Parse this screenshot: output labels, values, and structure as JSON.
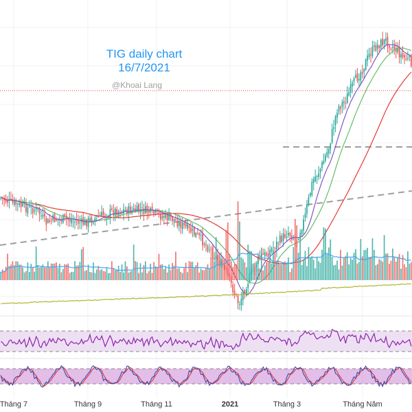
{
  "title": "TIG daily chart",
  "date": "16/7/2021",
  "watermark": "@Khoai Lang",
  "colors": {
    "up": "#26a69a",
    "down": "#ef5350",
    "ma_fast": "#7e57c2",
    "ma_mid": "#66bb6a",
    "ma_slow": "#e53935",
    "vol_ma": "#42a5f5",
    "obv": "#afb42b",
    "rsi": "#8e24aa",
    "rsi_band": "#ede0f3",
    "stoch_k": "#3949ab",
    "stoch_d": "#e53935",
    "stoch_band": "#ce93d8",
    "title": "#2196f3",
    "watermark": "#9e9e9e",
    "dash": "#9e9e9e",
    "ref_line": "#e53935"
  },
  "chart_data": {
    "type": "line",
    "title": "TIG daily chart",
    "subtitle": "16/7/2021",
    "x_tick_labels": [
      "Tháng 7",
      "Tháng 9",
      "Tháng 11",
      "2021",
      "Tháng 3",
      "Tháng Năm"
    ],
    "x_tick_bold": [
      false,
      false,
      false,
      true,
      false,
      false
    ],
    "price_shape": [
      [
        0,
        0.5
      ],
      [
        0.02,
        0.49
      ],
      [
        0.05,
        0.48
      ],
      [
        0.09,
        0.47
      ],
      [
        0.11,
        0.44
      ],
      [
        0.13,
        0.45
      ],
      [
        0.16,
        0.45
      ],
      [
        0.2,
        0.44
      ],
      [
        0.25,
        0.46
      ],
      [
        0.28,
        0.47
      ],
      [
        0.31,
        0.47
      ],
      [
        0.35,
        0.47
      ],
      [
        0.38,
        0.46
      ],
      [
        0.42,
        0.45
      ],
      [
        0.45,
        0.43
      ],
      [
        0.48,
        0.41
      ],
      [
        0.51,
        0.38
      ],
      [
        0.54,
        0.34
      ],
      [
        0.56,
        0.3
      ],
      [
        0.58,
        0.25
      ],
      [
        0.6,
        0.3
      ],
      [
        0.61,
        0.32
      ],
      [
        0.63,
        0.36
      ],
      [
        0.65,
        0.37
      ],
      [
        0.67,
        0.39
      ],
      [
        0.69,
        0.41
      ],
      [
        0.7,
        0.42
      ],
      [
        0.72,
        0.4
      ],
      [
        0.74,
        0.45
      ],
      [
        0.76,
        0.54
      ],
      [
        0.78,
        0.57
      ],
      [
        0.8,
        0.62
      ],
      [
        0.82,
        0.71
      ],
      [
        0.84,
        0.73
      ],
      [
        0.86,
        0.77
      ],
      [
        0.88,
        0.8
      ],
      [
        0.9,
        0.84
      ],
      [
        0.92,
        0.86
      ],
      [
        0.94,
        0.87
      ],
      [
        0.96,
        0.85
      ],
      [
        0.98,
        0.83
      ],
      [
        1.0,
        0.82
      ]
    ],
    "volume_spikes": [
      0.58,
      0.72,
      0.79,
      0.55
    ],
    "ma_periods": [
      10,
      20,
      50
    ],
    "resistance_level": 0.54,
    "breakout_level": 0.8,
    "grid": true
  }
}
